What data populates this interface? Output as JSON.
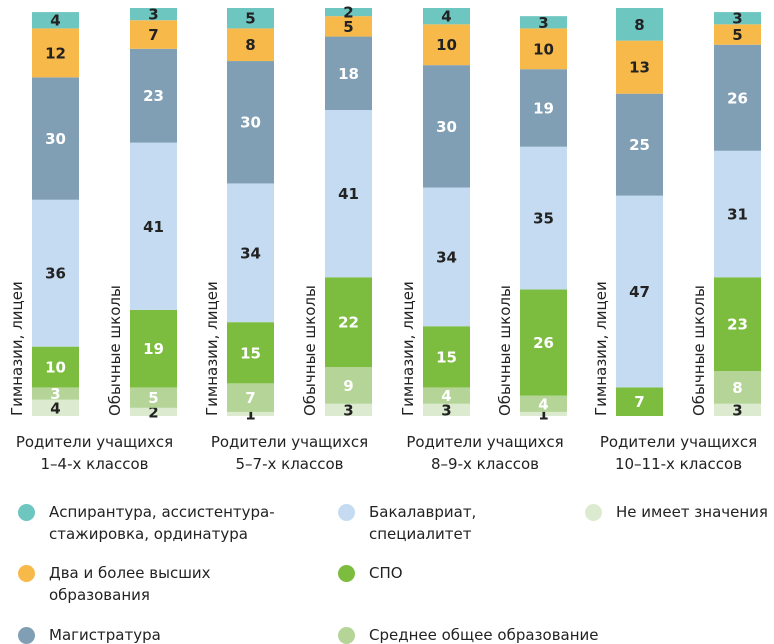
{
  "chart_data": {
    "type": "stacked_bar",
    "categories": [
      "Гимназии, лицеи",
      "Обычные школы",
      "Гимназии, лицеи",
      "Обычные школы",
      "Гимназии, лицеи",
      "Обычные школы",
      "Гимназии, лицеи",
      "Обычные школы"
    ],
    "groups": [
      "Родители учащихся\n1–4-х классов",
      "Родители учащихся\n5–7-х классов",
      "Родители учащихся\n8–9-х классов",
      "Родители учащихся\n10–11-х классов"
    ],
    "ylim": [
      0,
      100
    ],
    "series": [
      {
        "name": "Не имеет значения",
        "color": "#dcebd0",
        "values": [
          4,
          2,
          1,
          3,
          3,
          1,
          null,
          3
        ]
      },
      {
        "name": "Среднее общее образование",
        "color": "#b5d498",
        "values": [
          3,
          5,
          7,
          9,
          4,
          4,
          null,
          8
        ]
      },
      {
        "name": "СПО",
        "color": "#7cbd3f",
        "values": [
          10,
          19,
          15,
          22,
          15,
          26,
          7,
          23
        ]
      },
      {
        "name": "Бакалавриат,\nспециалитет",
        "color": "#c5dbf1",
        "values": [
          36,
          41,
          34,
          41,
          34,
          35,
          47,
          31
        ]
      },
      {
        "name": "Магистратура",
        "color": "#809fb5",
        "values": [
          30,
          23,
          30,
          18,
          30,
          19,
          25,
          26
        ]
      },
      {
        "name": "Два и более высших\nобразования",
        "color": "#f8b94b",
        "values": [
          12,
          7,
          8,
          5,
          10,
          10,
          13,
          5
        ]
      },
      {
        "name": "Аспирантура, ассистентура-\nстажировка, ординатура",
        "color": "#6ec6c1",
        "values": [
          4,
          3,
          5,
          2,
          4,
          3,
          8,
          3
        ]
      }
    ]
  }
}
